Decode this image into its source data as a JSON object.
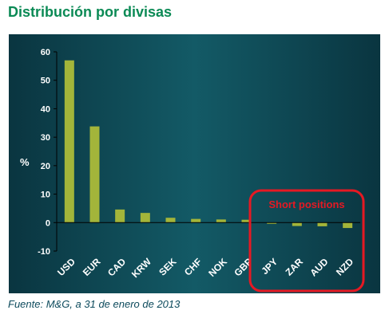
{
  "title": "Distribución por divisas",
  "source": "Fuente: M&G, a 31 de enero de 2013",
  "chart_data": {
    "type": "bar",
    "ylabel": "%",
    "ylim": [
      -10,
      60
    ],
    "yticks": [
      -10,
      0,
      10,
      20,
      30,
      40,
      50,
      60
    ],
    "categories": [
      "USD",
      "EUR",
      "CAD",
      "KRW",
      "SEK",
      "CHF",
      "NOK",
      "GBP",
      "JPY",
      "ZAR",
      "AUD",
      "NZD"
    ],
    "values": [
      57,
      33.8,
      4.6,
      3.4,
      1.7,
      1.3,
      1.1,
      1.0,
      -0.3,
      -1.2,
      -1.3,
      -1.9
    ],
    "annotation": "Short positions",
    "colors": {
      "background": "#0d3a44",
      "background_mid": "#11505b",
      "bar": "#a3b53a",
      "text": "#ffffff",
      "grid": "#000000",
      "highlight": "#e51923"
    }
  }
}
